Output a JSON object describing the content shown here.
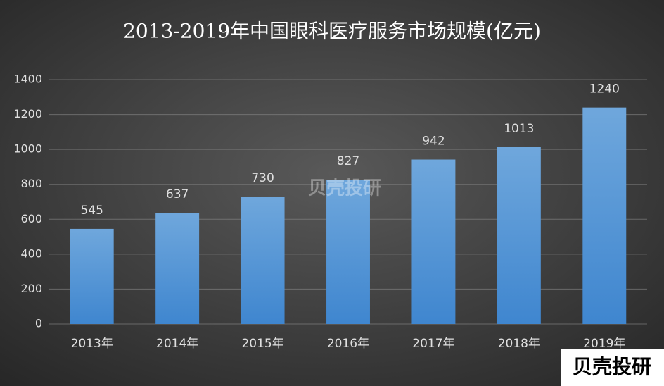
{
  "chart_data": {
    "type": "bar",
    "title": "2013-2019年中国眼科医疗服务市场规模(亿元)",
    "categories": [
      "2013年",
      "2014年",
      "2015年",
      "2016年",
      "2017年",
      "2018年",
      "2019年"
    ],
    "values": [
      545,
      637,
      730,
      827,
      942,
      1013,
      1240
    ],
    "color": "#5b9bd5",
    "ylim": [
      0,
      1400
    ],
    "yticks": [
      0,
      200,
      400,
      600,
      800,
      1000,
      1200,
      1400
    ],
    "grid": true,
    "watermark": "贝壳投研"
  }
}
